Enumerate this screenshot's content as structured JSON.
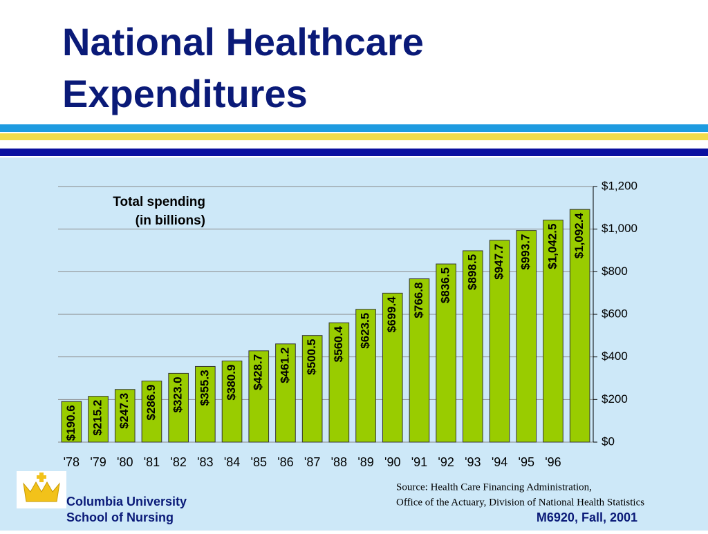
{
  "title": [
    "National Healthcare",
    "Expenditures"
  ],
  "chart_data": {
    "type": "bar",
    "annotation": [
      "Total spending",
      "(in billions)"
    ],
    "categories": [
      "'78",
      "'79",
      "'80",
      "'81",
      "'82",
      "'83",
      "'84",
      "'85",
      "'86",
      "'87",
      "'88",
      "'89",
      "'90",
      "'91",
      "'92",
      "'93",
      "'94",
      "'95",
      "'96",
      null
    ],
    "values": [
      190.6,
      215.2,
      247.3,
      286.9,
      323.0,
      355.3,
      380.9,
      428.7,
      461.2,
      500.5,
      560.4,
      623.5,
      699.4,
      766.8,
      836.5,
      898.5,
      947.7,
      993.7,
      1042.5,
      1092.4
    ],
    "value_labels": [
      "$190.6",
      "$215.2",
      "$247.3",
      "$286.9",
      "$323.0",
      "$355.3",
      "$380.9",
      "$428.7",
      "$461.2",
      "$500.5",
      "$560.4",
      "$623.5",
      "$699.4",
      "$766.8",
      "$836.5",
      "$898.5",
      "$947.7",
      "$993.7",
      "$1,042.5",
      "$1,092.4"
    ],
    "color": "#99cc00",
    "ylim": [
      0,
      1200
    ],
    "yticks": [
      {
        "value": 0,
        "label": "$0"
      },
      {
        "value": 200,
        "label": "$200"
      },
      {
        "value": 400,
        "label": "$400"
      },
      {
        "value": 600,
        "label": "$600"
      },
      {
        "value": 800,
        "label": "$800"
      },
      {
        "value": 1000,
        "label": "$1,000"
      },
      {
        "value": 1200,
        "label": "$1,200"
      }
    ],
    "grid": true
  },
  "source": [
    "Source: Health Care Financing Administration,",
    "Office of the Actuary, Division of National Health Statistics"
  ],
  "footer": {
    "school": [
      "Columbia University",
      "School of Nursing"
    ],
    "course": "M6920, Fall, 2001"
  }
}
